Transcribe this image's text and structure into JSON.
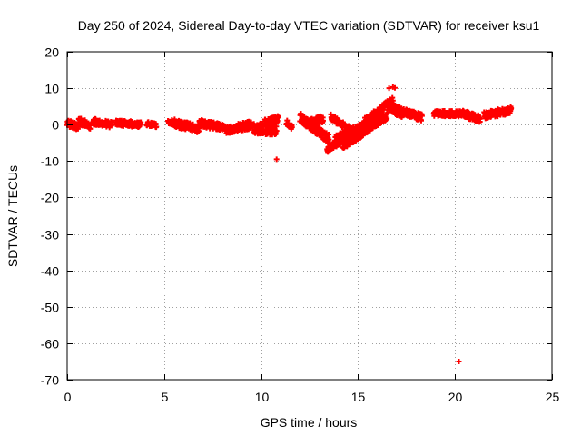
{
  "chart_data": {
    "type": "scatter",
    "title": "Day 250 of 2024, Sidereal Day-to-day VTEC variation (SDTVAR) for receiver ksu1",
    "xlabel": "GPS time / hours",
    "ylabel": "SDTVAR / TECUs",
    "xlim": [
      0,
      25
    ],
    "ylim": [
      -70,
      20
    ],
    "xticks": [
      0,
      5,
      10,
      15,
      20,
      25
    ],
    "yticks": [
      20,
      10,
      0,
      -10,
      -20,
      -30,
      -40,
      -50,
      -60,
      -70
    ],
    "grid": true,
    "marker": "+",
    "color": "#ff0000",
    "series": [
      {
        "name": "SDTVAR",
        "segments": [
          {
            "x0": 0.0,
            "x1": 0.6,
            "y0": 0.5,
            "y1": -0.8,
            "spread": 1.0
          },
          {
            "x0": 0.6,
            "x1": 1.2,
            "y0": 1.2,
            "y1": -0.5,
            "spread": 1.0
          },
          {
            "x0": 1.3,
            "x1": 2.3,
            "y0": 0.8,
            "y1": 0.0,
            "spread": 0.9
          },
          {
            "x0": 2.5,
            "x1": 3.8,
            "y0": 0.5,
            "y1": 0.0,
            "spread": 0.8
          },
          {
            "x0": 4.1,
            "x1": 4.6,
            "y0": 0.3,
            "y1": -0.3,
            "spread": 0.6
          },
          {
            "x0": 5.2,
            "x1": 6.8,
            "y0": 0.8,
            "y1": -1.2,
            "spread": 1.1
          },
          {
            "x0": 6.8,
            "x1": 8.2,
            "y0": 0.5,
            "y1": -1.0,
            "spread": 1.0
          },
          {
            "x0": 8.2,
            "x1": 9.5,
            "y0": -1.5,
            "y1": 0.0,
            "spread": 1.1
          },
          {
            "x0": 9.6,
            "x1": 10.8,
            "y0": -1.0,
            "y1": -1.5,
            "spread": 1.5
          },
          {
            "x0": 10.2,
            "x1": 10.9,
            "y0": 0.5,
            "y1": 1.5,
            "spread": 1.0
          },
          {
            "x0": 11.3,
            "x1": 11.6,
            "y0": 0.5,
            "y1": -0.5,
            "spread": 0.8
          },
          {
            "x0": 12.0,
            "x1": 13.5,
            "y0": 2.0,
            "y1": -4.0,
            "spread": 1.3
          },
          {
            "x0": 12.2,
            "x1": 13.2,
            "y0": 0.5,
            "y1": 1.5,
            "spread": 1.0
          },
          {
            "x0": 13.4,
            "x1": 14.5,
            "y0": -7.0,
            "y1": -3.0,
            "spread": 0.8
          },
          {
            "x0": 13.6,
            "x1": 14.8,
            "y0": 2.0,
            "y1": -2.0,
            "spread": 0.9
          },
          {
            "x0": 13.8,
            "x1": 15.6,
            "y0": -4.0,
            "y1": 0.5,
            "spread": 1.0
          },
          {
            "x0": 14.2,
            "x1": 16.5,
            "y0": -6.0,
            "y1": 2.5,
            "spread": 1.0
          },
          {
            "x0": 15.3,
            "x1": 16.8,
            "y0": 0.5,
            "y1": 6.5,
            "spread": 1.2
          },
          {
            "x0": 16.5,
            "x1": 17.3,
            "y0": 5.5,
            "y1": 3.0,
            "spread": 1.5
          },
          {
            "x0": 17.3,
            "x1": 18.3,
            "y0": 3.5,
            "y1": 2.0,
            "spread": 1.0
          },
          {
            "x0": 18.9,
            "x1": 20.4,
            "y0": 3.0,
            "y1": 3.0,
            "spread": 0.8
          },
          {
            "x0": 20.4,
            "x1": 21.3,
            "y0": 3.0,
            "y1": 1.5,
            "spread": 1.0
          },
          {
            "x0": 21.5,
            "x1": 22.9,
            "y0": 2.5,
            "y1": 4.0,
            "spread": 1.0
          }
        ],
        "points": [
          {
            "x": 16.6,
            "y": 10.0
          },
          {
            "x": 16.8,
            "y": 10.3
          },
          {
            "x": 16.9,
            "y": 10.1
          },
          {
            "x": 10.8,
            "y": -9.5
          },
          {
            "x": 20.2,
            "y": -65.0
          }
        ]
      }
    ]
  }
}
